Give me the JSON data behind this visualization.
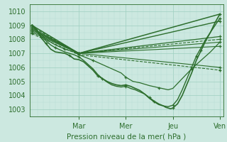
{
  "xlabel": "Pression niveau de la mer( hPa )",
  "bg_color": "#cce8e0",
  "grid_color_major": "#9ecfbf",
  "grid_color_minor": "#b8ddd4",
  "line_color": "#2d6e2d",
  "ylim": [
    1002.5,
    1010.5
  ],
  "yticks": [
    1003,
    1004,
    1005,
    1006,
    1007,
    1008,
    1009,
    1010
  ],
  "xlim": [
    -0.05,
    4.08
  ],
  "day_labels": [
    "Mar",
    "Mer",
    "Jeu",
    "Ven"
  ],
  "day_positions": [
    1,
    2,
    3,
    4
  ],
  "straight_lines": [
    {
      "x": [
        0,
        1,
        4
      ],
      "y": [
        1009.0,
        1007.0,
        1009.8
      ],
      "lw": 1.1,
      "style": "-"
    },
    {
      "x": [
        0,
        1,
        4
      ],
      "y": [
        1008.8,
        1007.0,
        1009.3
      ],
      "lw": 1.0,
      "style": "-"
    },
    {
      "x": [
        0,
        1,
        4
      ],
      "y": [
        1008.7,
        1007.0,
        1008.2
      ],
      "lw": 0.9,
      "style": "-"
    },
    {
      "x": [
        0,
        1,
        4
      ],
      "y": [
        1008.9,
        1007.0,
        1008.0
      ],
      "lw": 0.8,
      "style": "--"
    },
    {
      "x": [
        0,
        1,
        4
      ],
      "y": [
        1008.7,
        1007.0,
        1007.8
      ],
      "lw": 0.8,
      "style": "-"
    },
    {
      "x": [
        0,
        1,
        4
      ],
      "y": [
        1008.6,
        1007.0,
        1007.5
      ],
      "lw": 0.8,
      "style": "-"
    },
    {
      "x": [
        0,
        1,
        4
      ],
      "y": [
        1008.5,
        1007.0,
        1006.0
      ],
      "lw": 0.8,
      "style": "-"
    },
    {
      "x": [
        0,
        1,
        4
      ],
      "y": [
        1008.4,
        1006.9,
        1005.8
      ],
      "lw": 0.8,
      "style": "--"
    }
  ],
  "wavy_lines": [
    {
      "x": [
        0.0,
        0.05,
        0.1,
        0.15,
        0.2,
        0.25,
        0.3,
        0.35,
        0.4,
        0.5,
        0.6,
        0.7,
        0.8,
        0.9,
        1.0,
        1.1,
        1.2,
        1.3,
        1.4,
        1.5,
        1.6,
        1.7,
        1.8,
        1.9,
        2.0,
        2.1,
        2.2,
        2.3,
        2.4,
        2.5,
        2.6,
        2.7,
        2.8,
        2.85,
        2.9,
        2.95,
        3.0,
        3.1,
        3.2,
        3.3,
        3.4,
        3.5,
        3.6,
        3.7,
        3.8,
        3.9,
        4.0
      ],
      "y": [
        1009.0,
        1008.9,
        1008.7,
        1008.4,
        1008.1,
        1007.9,
        1007.7,
        1007.5,
        1007.3,
        1007.1,
        1007.05,
        1007.0,
        1006.85,
        1006.6,
        1006.55,
        1006.4,
        1006.1,
        1005.8,
        1005.4,
        1005.2,
        1005.0,
        1004.85,
        1004.75,
        1004.7,
        1004.75,
        1004.65,
        1004.5,
        1004.35,
        1004.1,
        1003.8,
        1003.55,
        1003.35,
        1003.25,
        1003.15,
        1003.1,
        1003.05,
        1003.1,
        1003.4,
        1004.0,
        1004.8,
        1005.6,
        1006.5,
        1007.2,
        1007.9,
        1008.5,
        1009.2,
        1009.8
      ],
      "lw": 1.2,
      "style": "-",
      "markevery": 6
    },
    {
      "x": [
        0.0,
        0.1,
        0.2,
        0.3,
        0.4,
        0.5,
        0.6,
        0.7,
        0.8,
        0.9,
        1.0,
        1.1,
        1.2,
        1.3,
        1.4,
        1.5,
        1.6,
        1.7,
        1.8,
        1.9,
        2.0,
        2.1,
        2.2,
        2.3,
        2.4,
        2.5,
        2.6,
        2.7,
        2.8,
        2.9,
        3.0,
        3.1,
        3.2,
        3.3,
        3.4,
        3.5,
        3.6,
        3.7,
        3.8,
        3.9,
        4.0
      ],
      "y": [
        1009.0,
        1008.6,
        1008.2,
        1007.9,
        1007.6,
        1007.4,
        1007.25,
        1007.1,
        1007.0,
        1006.9,
        1006.75,
        1006.5,
        1006.2,
        1005.9,
        1005.5,
        1005.2,
        1004.95,
        1004.75,
        1004.65,
        1004.6,
        1004.65,
        1004.5,
        1004.4,
        1004.25,
        1004.1,
        1003.85,
        1003.6,
        1003.4,
        1003.25,
        1003.2,
        1003.3,
        1003.7,
        1004.4,
        1005.2,
        1006.0,
        1006.8,
        1007.4,
        1008.0,
        1008.5,
        1009.0,
        1009.5
      ],
      "lw": 1.0,
      "style": "-",
      "markevery": 5
    },
    {
      "x": [
        0.0,
        0.15,
        0.3,
        0.5,
        0.7,
        0.9,
        1.0,
        1.15,
        1.3,
        1.5,
        1.7,
        1.9,
        2.0,
        2.15,
        2.3,
        2.5,
        2.7,
        2.9,
        3.0,
        3.2,
        3.4,
        3.6,
        3.8,
        4.0
      ],
      "y": [
        1009.0,
        1008.5,
        1008.0,
        1007.6,
        1007.3,
        1007.1,
        1006.9,
        1006.7,
        1006.5,
        1006.2,
        1005.9,
        1005.6,
        1005.3,
        1005.0,
        1004.9,
        1004.7,
        1004.55,
        1004.4,
        1004.5,
        1005.2,
        1005.9,
        1006.5,
        1007.1,
        1007.8
      ],
      "lw": 0.9,
      "style": "-",
      "markevery": 4
    }
  ]
}
